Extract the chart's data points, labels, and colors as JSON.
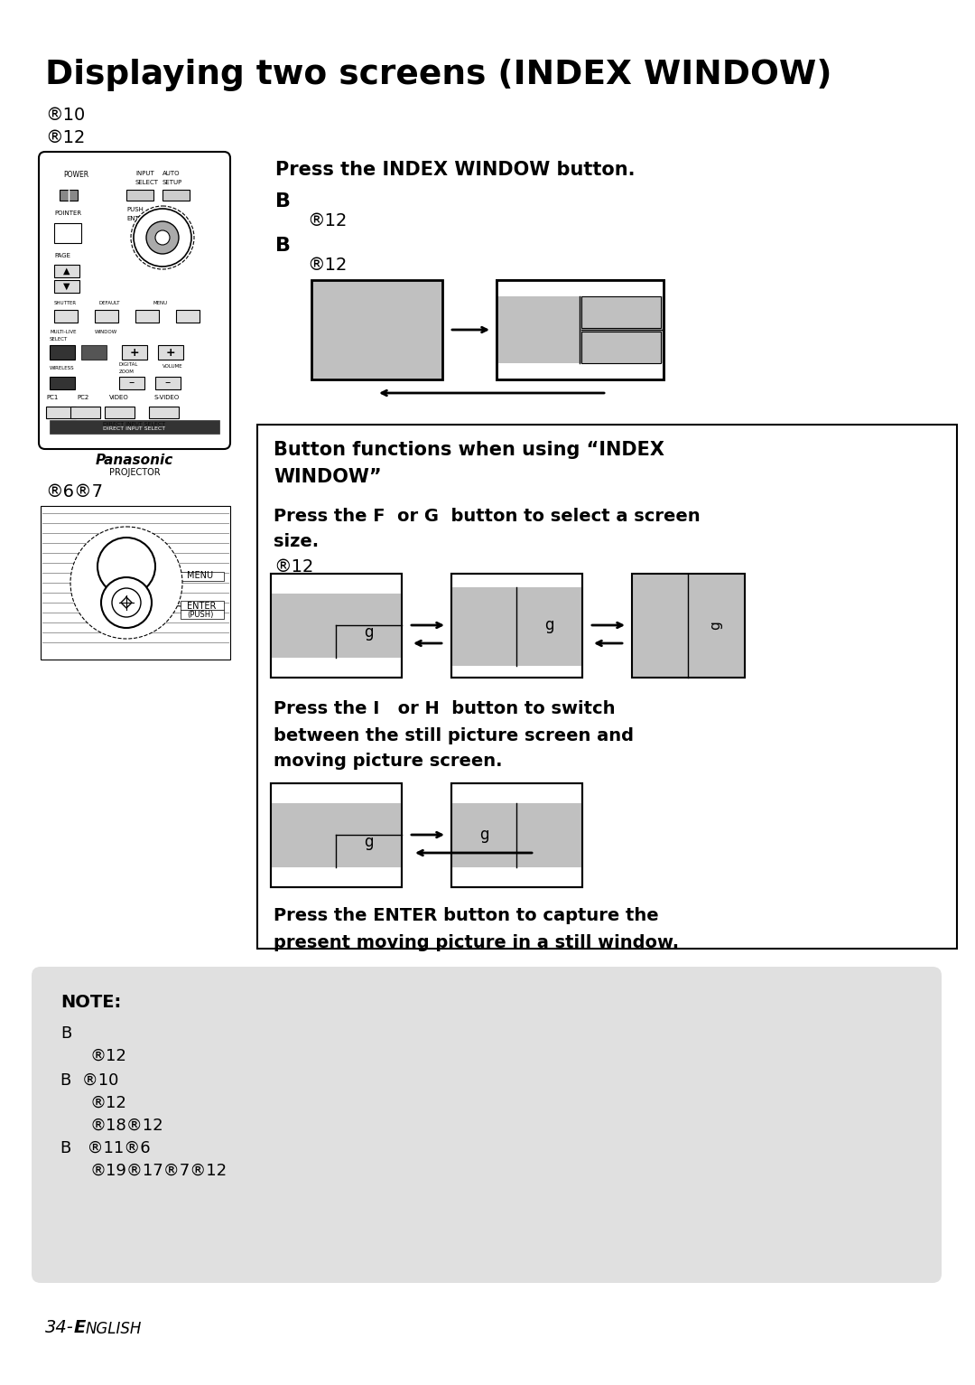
{
  "title": "Displaying two screens (INDEX WINDOW)",
  "bg_color": "#ffffff",
  "note_bg": "#e0e0e0",
  "gray_fill": "#c0c0c0",
  "press_index_window": "Press the INDEX WINDOW button.",
  "box_title_line1": "Button functions when using “INDEX",
  "box_title_line2": "WINDOW”",
  "press_FG_line1": "Press the F  or G  button to select a screen",
  "press_FG_line2": "size.",
  "press_IH_line1": "Press the I   or H  button to switch",
  "press_IH_line2": "between the still picture screen and",
  "press_IH_line3": "moving picture screen.",
  "press_enter_line1": "Press the ENTER button to capture the",
  "press_enter_line2": "present moving picture in a still window.",
  "note_label": "NOTE:",
  "note_line1": "B",
  "note_indent1": "   ®12",
  "note_line2": "B  ®10",
  "note_indent2": "   ®12",
  "note_indent3": "   ®18®12",
  "note_line3": "B   ®11®6",
  "note_indent4": "   ®19®17®7®12"
}
